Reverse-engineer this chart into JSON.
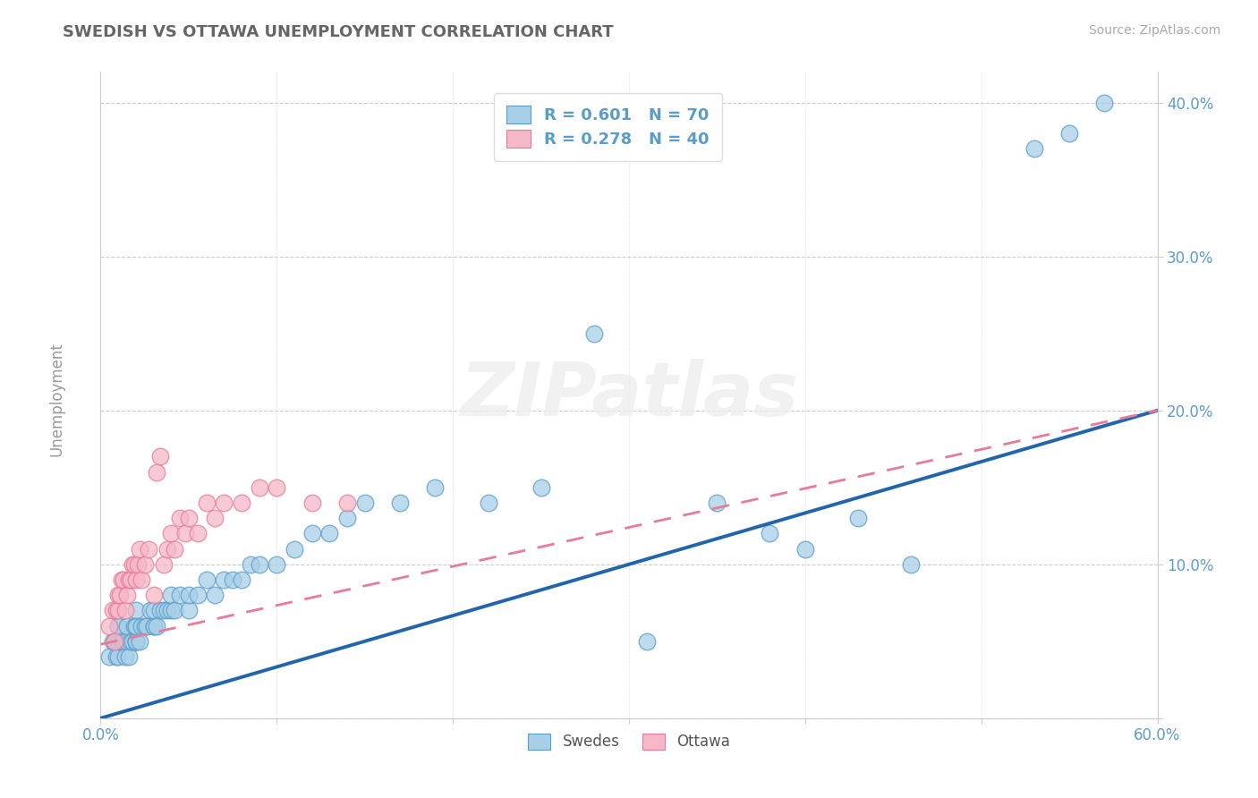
{
  "title": "SWEDISH VS OTTAWA UNEMPLOYMENT CORRELATION CHART",
  "source_text": "Source: ZipAtlas.com",
  "ylabel": "Unemployment",
  "yticks": [
    0.0,
    0.1,
    0.2,
    0.3,
    0.4
  ],
  "ytick_labels": [
    "",
    "10.0%",
    "20.0%",
    "30.0%",
    "40.0%"
  ],
  "xlim": [
    0.0,
    0.6
  ],
  "ylim": [
    0.0,
    0.42
  ],
  "swedes_color": "#a8cfe8",
  "ottawa_color": "#f5b8c8",
  "swedes_edge_color": "#5b9dc9",
  "ottawa_edge_color": "#e87a9a",
  "swedes_line_color": "#2166ac",
  "ottawa_line_color": "#e87a9a",
  "legend_label1": "R = 0.601   N = 70",
  "legend_label2": "R = 0.278   N = 40",
  "bottom_label1": "Swedes",
  "bottom_label2": "Ottawa",
  "background_color": "#ffffff",
  "grid_color": "#cccccc",
  "watermark": "ZIPatlas",
  "title_color": "#666666",
  "source_color": "#aaaaaa",
  "axis_label_color": "#5b9dc9",
  "tick_color": "#999999",
  "swedes_x": [
    0.005,
    0.007,
    0.008,
    0.009,
    0.01,
    0.01,
    0.01,
    0.01,
    0.01,
    0.012,
    0.013,
    0.014,
    0.015,
    0.015,
    0.016,
    0.017,
    0.018,
    0.019,
    0.02,
    0.02,
    0.02,
    0.02,
    0.02,
    0.02,
    0.022,
    0.023,
    0.025,
    0.026,
    0.028,
    0.03,
    0.03,
    0.03,
    0.032,
    0.034,
    0.036,
    0.038,
    0.04,
    0.04,
    0.042,
    0.045,
    0.05,
    0.05,
    0.055,
    0.06,
    0.065,
    0.07,
    0.075,
    0.08,
    0.085,
    0.09,
    0.1,
    0.11,
    0.12,
    0.13,
    0.14,
    0.15,
    0.17,
    0.19,
    0.22,
    0.25,
    0.28,
    0.31,
    0.35,
    0.38,
    0.4,
    0.43,
    0.46,
    0.53,
    0.55,
    0.57
  ],
  "swedes_y": [
    0.04,
    0.05,
    0.05,
    0.04,
    0.05,
    0.04,
    0.05,
    0.06,
    0.06,
    0.05,
    0.05,
    0.04,
    0.05,
    0.06,
    0.04,
    0.05,
    0.05,
    0.06,
    0.05,
    0.05,
    0.05,
    0.06,
    0.06,
    0.07,
    0.05,
    0.06,
    0.06,
    0.06,
    0.07,
    0.06,
    0.06,
    0.07,
    0.06,
    0.07,
    0.07,
    0.07,
    0.07,
    0.08,
    0.07,
    0.08,
    0.07,
    0.08,
    0.08,
    0.09,
    0.08,
    0.09,
    0.09,
    0.09,
    0.1,
    0.1,
    0.1,
    0.11,
    0.12,
    0.12,
    0.13,
    0.14,
    0.14,
    0.15,
    0.14,
    0.15,
    0.25,
    0.05,
    0.14,
    0.12,
    0.11,
    0.13,
    0.1,
    0.37,
    0.38,
    0.4
  ],
  "ottawa_x": [
    0.005,
    0.007,
    0.008,
    0.009,
    0.01,
    0.01,
    0.011,
    0.012,
    0.013,
    0.014,
    0.015,
    0.016,
    0.017,
    0.018,
    0.019,
    0.02,
    0.021,
    0.022,
    0.023,
    0.025,
    0.027,
    0.03,
    0.032,
    0.034,
    0.036,
    0.038,
    0.04,
    0.042,
    0.045,
    0.048,
    0.05,
    0.055,
    0.06,
    0.065,
    0.07,
    0.08,
    0.09,
    0.1,
    0.12,
    0.14
  ],
  "ottawa_y": [
    0.06,
    0.07,
    0.05,
    0.07,
    0.07,
    0.08,
    0.08,
    0.09,
    0.09,
    0.07,
    0.08,
    0.09,
    0.09,
    0.1,
    0.1,
    0.09,
    0.1,
    0.11,
    0.09,
    0.1,
    0.11,
    0.08,
    0.16,
    0.17,
    0.1,
    0.11,
    0.12,
    0.11,
    0.13,
    0.12,
    0.13,
    0.12,
    0.14,
    0.13,
    0.14,
    0.14,
    0.15,
    0.15,
    0.14,
    0.14
  ],
  "swedes_line_x": [
    0.0,
    0.6
  ],
  "swedes_line_y": [
    0.0,
    0.2
  ],
  "ottawa_line_x": [
    0.0,
    0.6
  ],
  "ottawa_line_y": [
    0.048,
    0.2
  ]
}
